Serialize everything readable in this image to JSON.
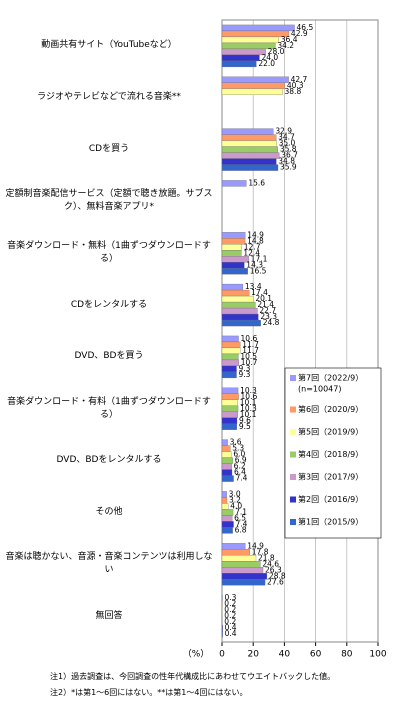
{
  "chart_data": {
    "type": "bar",
    "orientation": "horizontal",
    "categories": [
      "動画共有サイト（YouTubeなど）",
      "ラジオやテレビなどで流れる音楽**",
      "CDを買う",
      "定額制音楽配信サービス（定額で聴き放題。サブスク）、無料音楽アプリ*",
      "音楽ダウンロード・無料（1曲ずつダウンロードする）",
      "CDをレンタルする",
      "DVD、BDを買う",
      "音楽ダウンロード・有料（1曲ずつダウンロードする）",
      "DVD、BDをレンタルする",
      "その他",
      "音楽は聴かない、音源・音楽コンテンツは利用しない",
      "無回答"
    ],
    "series": [
      {
        "name": "第7回（2022/9）",
        "color": "#9999ff",
        "values": [
          46.5,
          42.7,
          32.9,
          15.6,
          14.9,
          13.4,
          10.6,
          10.3,
          3.6,
          3.0,
          14.9,
          0.3
        ],
        "value_labels": [
          "46.5",
          "42.7",
          "32.9",
          "15.6",
          "14.9",
          "13.4",
          "10.6",
          "10.3",
          "3.6",
          "3.0",
          "14.9",
          "0.3"
        ]
      },
      {
        "name": "第6回（2020/9）",
        "color": "#ff9966",
        "values": [
          42.9,
          40.3,
          34.7,
          null,
          14.8,
          17.4,
          11.7,
          10.6,
          5.3,
          3.2,
          17.8,
          0.2
        ],
        "value_labels": [
          "42.9",
          "40.3",
          "34.7",
          null,
          "14.8",
          "17.4",
          "11.7",
          "10.6",
          "5.3",
          "3.2",
          "17.8",
          "0.2"
        ]
      },
      {
        "name": "第5回（2019/9）",
        "color": "#ffff99",
        "values": [
          36.4,
          38.8,
          35.0,
          null,
          12.7,
          20.1,
          11.7,
          10.1,
          6.0,
          4.0,
          21.8,
          0.2
        ],
        "value_labels": [
          "36.4",
          "38.8",
          "35.0",
          null,
          "12.7",
          "20.1",
          "11.7",
          "10.1",
          "6.0",
          "4.0",
          "21.8",
          "0.2"
        ]
      },
      {
        "name": "第4回（2018/9）",
        "color": "#99cc66",
        "values": [
          34.2,
          null,
          35.8,
          null,
          12.4,
          21.4,
          10.5,
          10.3,
          6.9,
          7.1,
          24.6,
          0.2
        ],
        "value_labels": [
          "34.2",
          null,
          "35.8",
          null,
          "12.4",
          "21.4",
          "10.5",
          "10.3",
          "6.9",
          "7.1",
          "24.6",
          "0.2"
        ]
      },
      {
        "name": "第3回（2017/9）",
        "color": "#cc99cc",
        "values": [
          28.0,
          null,
          36.7,
          null,
          17.1,
          22.7,
          10.7,
          10.1,
          6.2,
          6.5,
          26.3,
          0.2
        ],
        "value_labels": [
          "28.0",
          null,
          "36.7",
          null,
          "17.1",
          "22.7",
          "10.7",
          "10.1",
          "6.2",
          "6.5",
          "26.3",
          "0.2"
        ]
      },
      {
        "name": "第2回（2016/9）",
        "color": "#3333cc",
        "values": [
          24.0,
          null,
          34.8,
          null,
          14.3,
          23.3,
          9.3,
          9.6,
          6.4,
          7.4,
          28.8,
          0.4
        ],
        "value_labels": [
          "24.0",
          null,
          "34.8",
          null,
          "14.3",
          "23.3",
          "9.3",
          "9.6",
          "6.4",
          "7.4",
          "28.8",
          "0.4"
        ]
      },
      {
        "name": "第1回（2015/9）",
        "color": "#3366cc",
        "values": [
          22.0,
          null,
          35.9,
          null,
          16.5,
          24.8,
          9.3,
          9.5,
          7.4,
          6.8,
          27.6,
          0.4
        ],
        "value_labels": [
          "22.0",
          null,
          "35.9",
          null,
          "16.5",
          "24.8",
          "9.3",
          "9.5",
          "7.4",
          "6.8",
          "27.6",
          "0.4"
        ]
      }
    ],
    "legend_note": "(n=10047)",
    "xlabel": "（%）",
    "xlim": [
      0,
      100
    ],
    "xticks": [
      0,
      20,
      40,
      60,
      80,
      100
    ],
    "grid": true,
    "notes": [
      "注1）過去調査は、今回調査の性年代構成比にあわせてウエイトバックした値。",
      "注2）*は第1～6回にはない。**は第1～4回にはない。"
    ]
  }
}
